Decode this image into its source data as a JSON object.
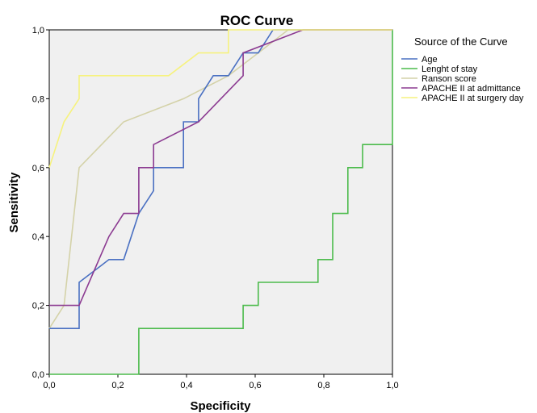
{
  "chart_data": {
    "type": "line",
    "title": "ROC Curve",
    "xlabel": "Specificity",
    "ylabel": "Sensitivity",
    "xlim": [
      0,
      1
    ],
    "ylim": [
      0,
      1
    ],
    "x_ticks": [
      0,
      0.2,
      0.4,
      0.6,
      0.8,
      1.0
    ],
    "x_tick_labels": [
      "0,0",
      "0,2",
      "0,4",
      "0,6",
      "0,8",
      "1,0"
    ],
    "y_ticks": [
      0,
      0.2,
      0.4,
      0.6,
      0.8,
      1.0
    ],
    "y_tick_labels": [
      "0,0",
      "0,2",
      "0,4",
      "0,6",
      "0,8",
      "1,0"
    ],
    "grid": false,
    "plot_background": "#f0f0f0",
    "legend": {
      "title": "Source of the Curve",
      "position": "right"
    },
    "series": [
      {
        "name": "Age",
        "color": "#4a70c2",
        "points": [
          [
            0,
            0.133
          ],
          [
            0.087,
            0.133
          ],
          [
            0.087,
            0.267
          ],
          [
            0.174,
            0.333
          ],
          [
            0.217,
            0.333
          ],
          [
            0.261,
            0.467
          ],
          [
            0.304,
            0.533
          ],
          [
            0.304,
            0.6
          ],
          [
            0.391,
            0.6
          ],
          [
            0.391,
            0.733
          ],
          [
            0.435,
            0.733
          ],
          [
            0.435,
            0.8
          ],
          [
            0.478,
            0.867
          ],
          [
            0.522,
            0.867
          ],
          [
            0.565,
            0.933
          ],
          [
            0.609,
            0.933
          ],
          [
            0.652,
            1.0
          ],
          [
            1.0,
            1.0
          ]
        ]
      },
      {
        "name": "Lenght of stay",
        "color": "#4cbb4c",
        "points": [
          [
            0,
            0
          ],
          [
            0.261,
            0
          ],
          [
            0.261,
            0.133
          ],
          [
            0.565,
            0.133
          ],
          [
            0.565,
            0.2
          ],
          [
            0.609,
            0.2
          ],
          [
            0.609,
            0.267
          ],
          [
            0.783,
            0.267
          ],
          [
            0.783,
            0.333
          ],
          [
            0.826,
            0.333
          ],
          [
            0.826,
            0.467
          ],
          [
            0.87,
            0.467
          ],
          [
            0.87,
            0.6
          ],
          [
            0.913,
            0.6
          ],
          [
            0.913,
            0.667
          ],
          [
            1.0,
            0.667
          ],
          [
            1.0,
            1.0
          ]
        ]
      },
      {
        "name": "Ranson score",
        "color": "#d4d2a8",
        "points": [
          [
            0,
            0.133
          ],
          [
            0.043,
            0.2
          ],
          [
            0.087,
            0.6
          ],
          [
            0.217,
            0.733
          ],
          [
            0.391,
            0.8
          ],
          [
            0.522,
            0.867
          ],
          [
            0.609,
            0.933
          ],
          [
            0.696,
            1.0
          ],
          [
            1.0,
            1.0
          ]
        ]
      },
      {
        "name": "APACHE II at admittance",
        "color": "#8b3a91",
        "points": [
          [
            0,
            0.2
          ],
          [
            0.087,
            0.2
          ],
          [
            0.174,
            0.4
          ],
          [
            0.217,
            0.467
          ],
          [
            0.261,
            0.467
          ],
          [
            0.261,
            0.6
          ],
          [
            0.304,
            0.6
          ],
          [
            0.304,
            0.667
          ],
          [
            0.435,
            0.733
          ],
          [
            0.565,
            0.867
          ],
          [
            0.565,
            0.933
          ],
          [
            0.739,
            1.0
          ],
          [
            1.0,
            1.0
          ]
        ]
      },
      {
        "name": "APACHE II at surgery day",
        "color": "#f6f27e",
        "points": [
          [
            0,
            0.6
          ],
          [
            0.043,
            0.733
          ],
          [
            0.087,
            0.8
          ],
          [
            0.087,
            0.867
          ],
          [
            0.348,
            0.867
          ],
          [
            0.435,
            0.933
          ],
          [
            0.522,
            0.933
          ],
          [
            0.522,
            1.0
          ],
          [
            1.0,
            1.0
          ]
        ]
      }
    ]
  }
}
